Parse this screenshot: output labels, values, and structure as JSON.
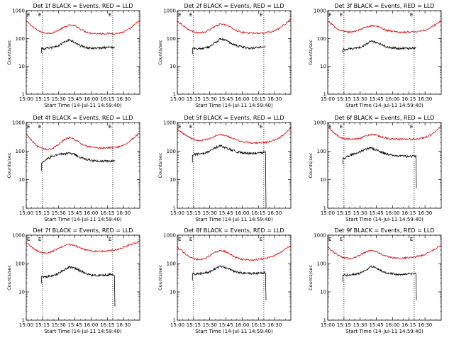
{
  "colors": {
    "events": "#000000",
    "lld": "#dd0000",
    "axes": "#000000",
    "background": "#ffffff"
  },
  "chart_data": {
    "type": "line",
    "layout": "3x3 grid of panels",
    "y_scale": "log",
    "ylim": [
      1,
      1000
    ],
    "y_ticks": [
      1,
      10,
      100,
      1000
    ],
    "y_tick_labels": [
      "1",
      "10",
      "100",
      "1000"
    ],
    "ylabel": "Counts/sec",
    "xlim_minutes_after_1500": [
      0,
      105
    ],
    "x_ticks": [
      0,
      15,
      30,
      45,
      60,
      75,
      90
    ],
    "x_tick_labels": [
      "15:00",
      "15:15",
      "15:30",
      "15:45",
      "16:00",
      "16:15",
      "16:30"
    ],
    "xlabel": "Start Time (14-Jul-11 14:59:40)",
    "vertical_markers_minutes": [
      15,
      80
    ],
    "flag_labels": [
      "E",
      "E"
    ],
    "series_legend": "BLACK = Events, RED = LLD",
    "panels": [
      {
        "title": "Det 1f BLACK = Events, RED = LLD",
        "lld": {
          "x": [
            0,
            5,
            10,
            15,
            20,
            25,
            30,
            35,
            40,
            45,
            50,
            55,
            60,
            65,
            70,
            75,
            80,
            85,
            90,
            95,
            100,
            105
          ],
          "y": [
            420,
            280,
            200,
            165,
            155,
            160,
            200,
            250,
            300,
            290,
            220,
            175,
            155,
            150,
            150,
            150,
            150,
            155,
            170,
            210,
            300,
            450
          ]
        },
        "events": {
          "x": [
            14,
            17,
            20,
            25,
            30,
            35,
            40,
            45,
            50,
            55,
            60,
            65,
            70,
            75,
            80,
            82
          ],
          "y": [
            45,
            42,
            45,
            48,
            55,
            75,
            90,
            70,
            55,
            48,
            45,
            45,
            46,
            48,
            48,
            50
          ],
          "start_floor": 30
        }
      },
      {
        "title": "Det 2f BLACK = Events, RED = LLD",
        "lld": {
          "x": [
            0,
            5,
            10,
            15,
            20,
            25,
            30,
            35,
            40,
            45,
            50,
            55,
            60,
            65,
            70,
            75,
            80,
            85,
            90,
            95,
            100,
            105
          ],
          "y": [
            420,
            300,
            210,
            175,
            160,
            165,
            210,
            270,
            330,
            310,
            240,
            190,
            165,
            160,
            155,
            155,
            160,
            170,
            190,
            240,
            330,
            480
          ]
        },
        "events": {
          "x": [
            14,
            17,
            20,
            25,
            30,
            35,
            40,
            45,
            50,
            55,
            60,
            65,
            70,
            75,
            80,
            82
          ],
          "y": [
            45,
            42,
            44,
            46,
            50,
            70,
            95,
            85,
            65,
            55,
            50,
            45,
            45,
            48,
            50,
            52
          ],
          "start_floor": 28
        }
      },
      {
        "title": "Det 3f BLACK = Events, RED = LLD",
        "lld": {
          "x": [
            0,
            5,
            10,
            15,
            20,
            25,
            30,
            35,
            40,
            45,
            50,
            55,
            60,
            65,
            70,
            75,
            80,
            85,
            90,
            95,
            100,
            105
          ],
          "y": [
            420,
            290,
            210,
            180,
            170,
            180,
            210,
            250,
            290,
            280,
            230,
            195,
            180,
            170,
            170,
            170,
            175,
            180,
            200,
            240,
            320,
            430
          ]
        },
        "events": {
          "x": [
            14,
            17,
            20,
            25,
            30,
            35,
            40,
            45,
            50,
            55,
            60,
            65,
            70,
            75,
            80,
            82
          ],
          "y": [
            42,
            40,
            42,
            44,
            48,
            60,
            80,
            75,
            60,
            50,
            46,
            44,
            44,
            45,
            46,
            47
          ],
          "start_floor": 30
        }
      },
      {
        "title": "Det 4f BLACK = Events, RED = LLD",
        "lld": {
          "x": [
            0,
            5,
            10,
            15,
            20,
            25,
            30,
            35,
            40,
            45,
            50,
            55,
            60,
            65,
            70,
            75,
            80,
            85,
            90,
            95,
            100,
            105
          ],
          "y": [
            380,
            230,
            150,
            120,
            115,
            125,
            170,
            250,
            300,
            250,
            190,
            150,
            135,
            130,
            130,
            130,
            135,
            140,
            160,
            210,
            300,
            420
          ]
        },
        "events": {
          "x": [
            14,
            17,
            20,
            25,
            30,
            35,
            40,
            45,
            50,
            55,
            60,
            65,
            70,
            75,
            80,
            82
          ],
          "y": [
            40,
            45,
            55,
            70,
            75,
            80,
            85,
            75,
            60,
            52,
            48,
            44,
            44,
            45,
            46,
            45
          ],
          "start_floor": 20
        }
      },
      {
        "title": "Det 5f BLACK = Events, RED = LLD",
        "lld": {
          "x": [
            0,
            5,
            10,
            15,
            20,
            25,
            30,
            35,
            40,
            45,
            50,
            55,
            60,
            65,
            70,
            75,
            80,
            85,
            90,
            95,
            100,
            105
          ],
          "y": [
            600,
            420,
            320,
            260,
            240,
            245,
            280,
            330,
            380,
            350,
            290,
            240,
            210,
            200,
            195,
            195,
            200,
            210,
            240,
            300,
            420,
            650
          ]
        },
        "events": {
          "x": [
            14,
            17,
            20,
            25,
            30,
            35,
            40,
            45,
            50,
            55,
            60,
            65,
            70,
            75,
            80,
            82
          ],
          "y": [
            75,
            78,
            80,
            85,
            100,
            130,
            155,
            130,
            110,
            95,
            88,
            85,
            85,
            86,
            88,
            90
          ],
          "start_floor": 40,
          "drop_to": 1
        }
      },
      {
        "title": "Det 6f BLACK = Events, RED = LLD",
        "lld": {
          "x": [
            0,
            5,
            10,
            15,
            20,
            25,
            30,
            35,
            40,
            45,
            50,
            55,
            60,
            65,
            70,
            75,
            80,
            85,
            90,
            95,
            100,
            105
          ],
          "y": [
            700,
            450,
            320,
            270,
            260,
            265,
            290,
            340,
            380,
            360,
            310,
            280,
            265,
            260,
            260,
            260,
            265,
            275,
            300,
            360,
            480,
            750
          ]
        },
        "events": {
          "x": [
            14,
            17,
            20,
            25,
            30,
            35,
            40,
            45,
            50,
            55,
            60,
            65,
            70,
            75,
            80,
            82
          ],
          "y": [
            55,
            60,
            70,
            80,
            95,
            115,
            130,
            110,
            90,
            78,
            72,
            68,
            66,
            65,
            66,
            67
          ],
          "start_floor": 35,
          "drop_to": 5
        }
      },
      {
        "title": "Det 7f BLACK = Events, RED = LLD",
        "lld": {
          "x": [
            0,
            5,
            10,
            15,
            20,
            25,
            30,
            35,
            40,
            45,
            50,
            55,
            60,
            65,
            70,
            75,
            80,
            85,
            90,
            95,
            100,
            105
          ],
          "y": [
            550,
            380,
            280,
            230,
            240,
            280,
            350,
            420,
            480,
            430,
            350,
            300,
            280,
            270,
            270,
            275,
            290,
            320,
            380,
            450,
            520,
            600
          ]
        },
        "events": {
          "x": [
            14,
            17,
            20,
            25,
            30,
            35,
            40,
            45,
            50,
            55,
            60,
            65,
            70,
            75,
            80,
            82
          ],
          "y": [
            35,
            33,
            35,
            38,
            45,
            60,
            75,
            70,
            55,
            45,
            40,
            38,
            38,
            40,
            42,
            40
          ],
          "start_floor": 20,
          "drop_to": 3
        }
      },
      {
        "title": "Det 8f BLACK = Events, RED = LLD",
        "lld": {
          "x": [
            0,
            5,
            10,
            15,
            20,
            25,
            30,
            35,
            40,
            45,
            50,
            55,
            60,
            65,
            70,
            75,
            80,
            85,
            90,
            95,
            100,
            105
          ],
          "y": [
            380,
            260,
            180,
            145,
            135,
            145,
            190,
            250,
            290,
            260,
            200,
            160,
            140,
            135,
            135,
            140,
            150,
            165,
            190,
            240,
            320,
            420
          ]
        },
        "events": {
          "x": [
            14,
            17,
            20,
            25,
            30,
            35,
            40,
            45,
            50,
            55,
            60,
            65,
            70,
            75,
            80,
            82
          ],
          "y": [
            45,
            42,
            44,
            46,
            50,
            65,
            80,
            70,
            58,
            50,
            46,
            45,
            45,
            46,
            48,
            50
          ],
          "start_floor": 25,
          "drop_to": 5
        }
      },
      {
        "title": "Det 9f BLACK = Events, RED = LLD",
        "lld": {
          "x": [
            0,
            5,
            10,
            15,
            20,
            25,
            30,
            35,
            40,
            45,
            50,
            55,
            60,
            65,
            70,
            75,
            80,
            85,
            90,
            95,
            100,
            105
          ],
          "y": [
            380,
            260,
            190,
            160,
            150,
            160,
            200,
            250,
            290,
            260,
            210,
            175,
            160,
            155,
            155,
            160,
            170,
            185,
            210,
            260,
            340,
            430
          ]
        },
        "events": {
          "x": [
            14,
            17,
            20,
            25,
            30,
            35,
            40,
            45,
            50,
            55,
            60,
            65,
            70,
            75,
            80,
            82
          ],
          "y": [
            40,
            38,
            40,
            42,
            46,
            58,
            75,
            70,
            55,
            47,
            44,
            42,
            42,
            43,
            44,
            45
          ],
          "start_floor": 22,
          "drop_to": 5
        }
      }
    ]
  }
}
